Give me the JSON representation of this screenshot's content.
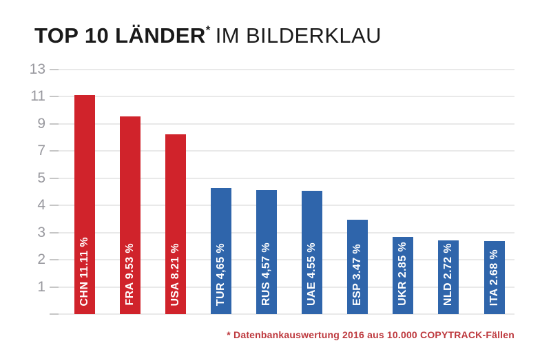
{
  "title": {
    "main": "TOP 10 LÄNDER",
    "asterisk": "*",
    "rest": "IM BILDERKLAU"
  },
  "footnote": "* Datenbankauswertung 2016 aus 10.000 COPYTRACK-Fällen",
  "colors": {
    "bar_red": "#d0232b",
    "bar_blue": "#2f65ab",
    "title_text": "#1a1a1a",
    "footnote_text": "#bd383d",
    "axis_label": "#98989e",
    "tick": "#c6c6c6",
    "gridline": "#e9e9e9",
    "bar_label": "#ffffff",
    "background": "#ffffff"
  },
  "chart_data": {
    "type": "bar",
    "title": "TOP 10 LÄNDER* IM BILDERKLAU",
    "categories": [
      "CHN",
      "FRA",
      "USA",
      "TUR",
      "RUS",
      "UAE",
      "ESP",
      "UKR",
      "NLD",
      "ITA"
    ],
    "values": [
      11.11,
      9.53,
      8.21,
      4.65,
      4.57,
      4.55,
      3.47,
      2.85,
      2.72,
      2.68
    ],
    "unit": "%",
    "bar_labels": [
      "CHN 11.11 %",
      "FRA 9.53 %",
      "USA 8.21 %",
      "TUR 4,65 %",
      "RUS 4,57 %",
      "UAE 4.55 %",
      "ESP 3.47 %",
      "UKR 2.85 %",
      "NLD 2.72 %",
      "ITA 2.68 %"
    ],
    "bar_color_keys": [
      "bar_red",
      "bar_red",
      "bar_red",
      "bar_blue",
      "bar_blue",
      "bar_blue",
      "bar_blue",
      "bar_blue",
      "bar_blue",
      "bar_blue"
    ],
    "xlabel": "",
    "ylabel": "",
    "y_axis": {
      "ticks": [
        13,
        11,
        9,
        7,
        5,
        4,
        3,
        2,
        1
      ],
      "baseline": 0,
      "note": "non-linear axis: ticks equally spaced; 1 unit per step up to 5, then 2 units per step (5,7,9,11,13)"
    },
    "grid": true,
    "legend": "none",
    "source_note": "* Datenbankauswertung 2016 aus 10.000 COPYTRACK-Fällen"
  }
}
